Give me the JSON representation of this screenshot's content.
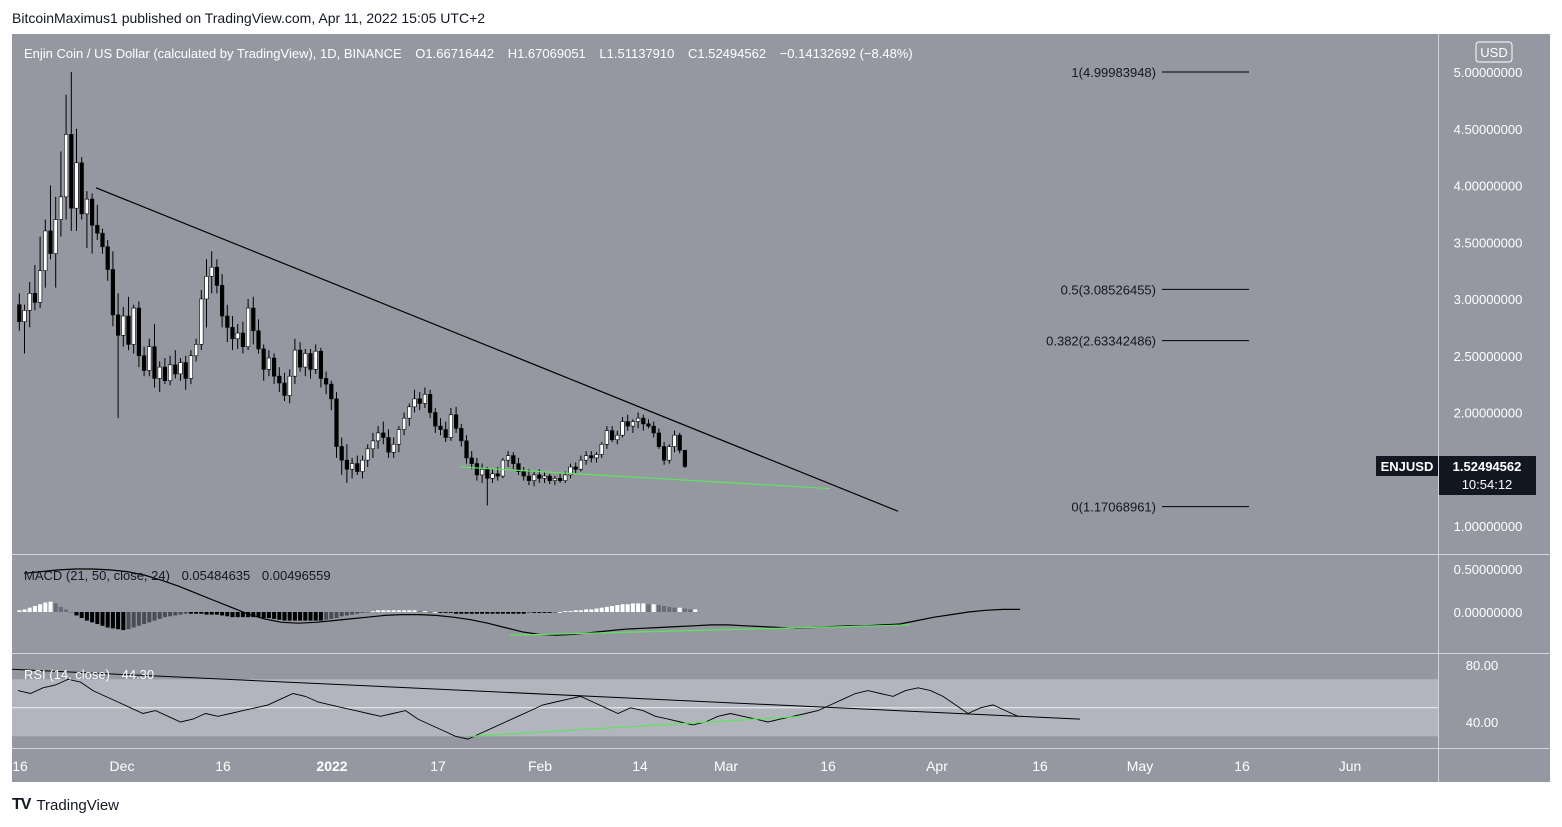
{
  "header": {
    "published_by": "BitcoinMaximus1 published on TradingView.com, Apr 11, 2022 15:05 UTC+2"
  },
  "symbol": {
    "title": "Enjin Coin / US Dollar (calculated by TradingView), 1D, BINANCE",
    "open_label": "O",
    "open": "1.66716442",
    "high_label": "H",
    "high": "1.67069051",
    "low_label": "L",
    "low": "1.51137910",
    "close_label": "C",
    "close": "1.52494562",
    "change": "−0.14132692 (−8.48%)",
    "ticker": "ENJUSD",
    "last_price": "1.52494562",
    "countdown": "10:54:12",
    "currency": "USD"
  },
  "colors": {
    "pane_bg": "#9598a1",
    "rsi_band": "#b2b5be",
    "candle_up": "#ffffff",
    "candle_down": "#000000",
    "trendline": "#000000",
    "support": "#5ce65c",
    "macd_line": "#000000",
    "tag_bg": "#131722"
  },
  "macd": {
    "label": "MACD (21, 50, close, 24)",
    "value1": "0.05484635",
    "value2": "0.00496559",
    "axis": [
      "0.50000000",
      "0.00000000"
    ]
  },
  "rsi": {
    "label": "RSI (14, close)",
    "value": "44.30",
    "axis": [
      "80.00",
      "40.00"
    ]
  },
  "x_axis": [
    "16",
    "Dec",
    "16",
    "2022",
    "17",
    "Feb",
    "14",
    "Mar",
    "16",
    "Apr",
    "16",
    "May",
    "16",
    "Jun"
  ],
  "price_axis": [
    "5.00000000",
    "4.50000000",
    "4.00000000",
    "3.50000000",
    "3.00000000",
    "2.50000000",
    "2.00000000",
    "1.00000000"
  ],
  "fib": [
    {
      "label": "1(4.99983948)",
      "level": 4.99983948
    },
    {
      "label": "0.5(3.08526455)",
      "level": 3.08526455
    },
    {
      "label": "0.382(2.63342486)",
      "level": 2.63342486
    },
    {
      "label": "0(1.17068961)",
      "level": 1.17068961
    }
  ],
  "footer": {
    "brand": "TradingView",
    "logo": "TV"
  },
  "chart_data": {
    "type": "candlestick",
    "title": "Enjin Coin / US Dollar (calculated by TradingView), 1D, BINANCE",
    "ylim": [
      0.9,
      5.2
    ],
    "candles": [
      [
        2.95,
        3.05,
        2.72,
        2.8
      ],
      [
        2.8,
        2.95,
        2.52,
        2.9
      ],
      [
        2.9,
        3.15,
        2.75,
        3.05
      ],
      [
        3.05,
        3.3,
        2.9,
        2.97
      ],
      [
        2.97,
        3.55,
        2.92,
        3.25
      ],
      [
        3.25,
        3.7,
        3.1,
        3.6
      ],
      [
        3.6,
        4.0,
        3.35,
        3.4
      ],
      [
        3.4,
        3.9,
        3.1,
        3.7
      ],
      [
        3.7,
        4.3,
        3.55,
        3.9
      ],
      [
        3.9,
        4.8,
        3.7,
        4.45
      ],
      [
        4.45,
        5.0,
        3.6,
        3.8
      ],
      [
        3.8,
        4.5,
        3.6,
        4.2
      ],
      [
        4.2,
        4.25,
        3.7,
        3.75
      ],
      [
        3.75,
        3.95,
        3.45,
        3.88
      ],
      [
        3.88,
        3.93,
        3.4,
        3.65
      ],
      [
        3.65,
        3.83,
        3.52,
        3.58
      ],
      [
        3.58,
        3.62,
        3.4,
        3.46
      ],
      [
        3.46,
        3.52,
        3.16,
        3.26
      ],
      [
        3.26,
        3.42,
        2.76,
        2.86
      ],
      [
        2.86,
        3.05,
        1.95,
        2.68
      ],
      [
        2.68,
        2.93,
        2.58,
        2.85
      ],
      [
        2.85,
        3.02,
        2.55,
        2.6
      ],
      [
        2.6,
        2.95,
        2.52,
        2.92
      ],
      [
        2.92,
        2.98,
        2.4,
        2.5
      ],
      [
        2.5,
        2.58,
        2.32,
        2.37
      ],
      [
        2.37,
        2.65,
        2.32,
        2.58
      ],
      [
        2.58,
        2.78,
        2.22,
        2.3
      ],
      [
        2.3,
        2.45,
        2.18,
        2.4
      ],
      [
        2.4,
        2.48,
        2.25,
        2.28
      ],
      [
        2.28,
        2.5,
        2.24,
        2.42
      ],
      [
        2.42,
        2.55,
        2.3,
        2.34
      ],
      [
        2.34,
        2.48,
        2.28,
        2.44
      ],
      [
        2.44,
        2.5,
        2.2,
        2.3
      ],
      [
        2.3,
        2.55,
        2.25,
        2.5
      ],
      [
        2.5,
        2.65,
        2.45,
        2.6
      ],
      [
        2.6,
        3.08,
        2.55,
        3.0
      ],
      [
        3.0,
        3.35,
        2.75,
        3.2
      ],
      [
        3.2,
        3.42,
        3.05,
        3.28
      ],
      [
        3.28,
        3.35,
        3.05,
        3.12
      ],
      [
        3.12,
        3.22,
        2.75,
        2.85
      ],
      [
        2.85,
        2.95,
        2.62,
        2.75
      ],
      [
        2.75,
        2.85,
        2.55,
        2.65
      ],
      [
        2.65,
        2.78,
        2.56,
        2.7
      ],
      [
        2.7,
        2.8,
        2.52,
        2.58
      ],
      [
        2.58,
        3.0,
        2.55,
        2.92
      ],
      [
        2.92,
        3.02,
        2.6,
        2.72
      ],
      [
        2.72,
        2.82,
        2.52,
        2.56
      ],
      [
        2.56,
        2.6,
        2.28,
        2.38
      ],
      [
        2.38,
        2.55,
        2.32,
        2.48
      ],
      [
        2.48,
        2.52,
        2.25,
        2.32
      ],
      [
        2.32,
        2.4,
        2.18,
        2.26
      ],
      [
        2.26,
        2.35,
        2.1,
        2.15
      ],
      [
        2.15,
        2.38,
        2.08,
        2.32
      ],
      [
        2.32,
        2.65,
        2.25,
        2.55
      ],
      [
        2.55,
        2.62,
        2.36,
        2.4
      ],
      [
        2.4,
        2.56,
        2.32,
        2.52
      ],
      [
        2.52,
        2.56,
        2.3,
        2.38
      ],
      [
        2.38,
        2.6,
        2.34,
        2.54
      ],
      [
        2.54,
        2.57,
        2.22,
        2.3
      ],
      [
        2.3,
        2.36,
        2.16,
        2.25
      ],
      [
        2.25,
        2.28,
        2.02,
        2.12
      ],
      [
        2.12,
        2.18,
        1.6,
        1.7
      ],
      [
        1.7,
        1.78,
        1.45,
        1.58
      ],
      [
        1.58,
        1.72,
        1.38,
        1.5
      ],
      [
        1.5,
        1.6,
        1.42,
        1.55
      ],
      [
        1.55,
        1.62,
        1.45,
        1.48
      ],
      [
        1.48,
        1.62,
        1.42,
        1.58
      ],
      [
        1.58,
        1.72,
        1.52,
        1.68
      ],
      [
        1.68,
        1.82,
        1.6,
        1.75
      ],
      [
        1.75,
        1.88,
        1.68,
        1.82
      ],
      [
        1.82,
        1.92,
        1.72,
        1.78
      ],
      [
        1.78,
        1.85,
        1.6,
        1.65
      ],
      [
        1.65,
        1.78,
        1.6,
        1.72
      ],
      [
        1.72,
        1.88,
        1.65,
        1.85
      ],
      [
        1.85,
        2.0,
        1.8,
        1.95
      ],
      [
        1.95,
        2.08,
        1.88,
        2.05
      ],
      [
        2.05,
        2.2,
        2.0,
        2.12
      ],
      [
        2.12,
        2.18,
        2.02,
        2.08
      ],
      [
        2.08,
        2.22,
        2.04,
        2.16
      ],
      [
        2.16,
        2.2,
        1.95,
        2.0
      ],
      [
        2.0,
        2.04,
        1.82,
        1.88
      ],
      [
        1.88,
        1.95,
        1.8,
        1.85
      ],
      [
        1.85,
        1.92,
        1.74,
        1.78
      ],
      [
        1.78,
        2.04,
        1.75,
        1.98
      ],
      [
        1.98,
        2.05,
        1.82,
        1.86
      ],
      [
        1.86,
        1.9,
        1.7,
        1.75
      ],
      [
        1.75,
        1.8,
        1.55,
        1.6
      ],
      [
        1.6,
        1.66,
        1.5,
        1.55
      ],
      [
        1.55,
        1.6,
        1.4,
        1.45
      ],
      [
        1.45,
        1.55,
        1.38,
        1.5
      ],
      [
        1.5,
        1.52,
        1.18,
        1.42
      ],
      [
        1.42,
        1.5,
        1.38,
        1.46
      ],
      [
        1.46,
        1.52,
        1.4,
        1.44
      ],
      [
        1.44,
        1.6,
        1.42,
        1.58
      ],
      [
        1.58,
        1.66,
        1.52,
        1.62
      ],
      [
        1.62,
        1.65,
        1.5,
        1.55
      ],
      [
        1.55,
        1.6,
        1.45,
        1.48
      ],
      [
        1.48,
        1.52,
        1.4,
        1.44
      ],
      [
        1.44,
        1.5,
        1.36,
        1.4
      ],
      [
        1.4,
        1.48,
        1.35,
        1.45
      ],
      [
        1.45,
        1.5,
        1.38,
        1.42
      ],
      [
        1.42,
        1.48,
        1.38,
        1.44
      ],
      [
        1.44,
        1.46,
        1.37,
        1.4
      ],
      [
        1.4,
        1.44,
        1.36,
        1.42
      ],
      [
        1.42,
        1.46,
        1.38,
        1.4
      ],
      [
        1.4,
        1.48,
        1.38,
        1.45
      ],
      [
        1.45,
        1.55,
        1.42,
        1.52
      ],
      [
        1.52,
        1.56,
        1.46,
        1.5
      ],
      [
        1.5,
        1.62,
        1.48,
        1.58
      ],
      [
        1.58,
        1.66,
        1.54,
        1.62
      ],
      [
        1.62,
        1.66,
        1.56,
        1.6
      ],
      [
        1.6,
        1.65,
        1.56,
        1.63
      ],
      [
        1.63,
        1.74,
        1.6,
        1.72
      ],
      [
        1.72,
        1.88,
        1.68,
        1.84
      ],
      [
        1.84,
        1.88,
        1.74,
        1.76
      ],
      [
        1.76,
        1.84,
        1.72,
        1.8
      ],
      [
        1.8,
        1.96,
        1.78,
        1.92
      ],
      [
        1.92,
        1.98,
        1.84,
        1.88
      ],
      [
        1.88,
        1.94,
        1.82,
        1.92
      ],
      [
        1.92,
        2.0,
        1.86,
        1.95
      ],
      [
        1.95,
        1.98,
        1.84,
        1.9
      ],
      [
        1.9,
        1.94,
        1.86,
        1.88
      ],
      [
        1.88,
        1.92,
        1.78,
        1.82
      ],
      [
        1.82,
        1.86,
        1.68,
        1.7
      ],
      [
        1.7,
        1.74,
        1.54,
        1.58
      ],
      [
        1.58,
        1.72,
        1.55,
        1.7
      ],
      [
        1.7,
        1.84,
        1.65,
        1.8
      ],
      [
        1.8,
        1.82,
        1.64,
        1.667
      ],
      [
        1.667,
        1.671,
        1.511,
        1.525
      ]
    ],
    "macd_hist": [
      0.02,
      0.03,
      0.05,
      0.07,
      0.09,
      0.11,
      0.12,
      0.1,
      0.06,
      0.03,
      0.0,
      -0.04,
      -0.07,
      -0.1,
      -0.12,
      -0.14,
      -0.16,
      -0.18,
      -0.19,
      -0.2,
      -0.21,
      -0.2,
      -0.18,
      -0.16,
      -0.14,
      -0.12,
      -0.1,
      -0.08,
      -0.06,
      -0.05,
      -0.04,
      -0.03,
      -0.02,
      -0.02,
      -0.02,
      -0.02,
      -0.03,
      -0.03,
      -0.03,
      -0.04,
      -0.05,
      -0.06,
      -0.06,
      -0.06,
      -0.06,
      -0.06,
      -0.06,
      -0.07,
      -0.07,
      -0.08,
      -0.09,
      -0.1,
      -0.1,
      -0.1,
      -0.1,
      -0.1,
      -0.1,
      -0.1,
      -0.1,
      -0.09,
      -0.08,
      -0.07,
      -0.05,
      -0.04,
      -0.03,
      -0.02,
      -0.01,
      0.0,
      0.01,
      0.02,
      0.02,
      0.02,
      0.02,
      0.02,
      0.02,
      0.02,
      0.02,
      0.01,
      0.01,
      0.0,
      0.0,
      -0.01,
      -0.01,
      -0.01,
      -0.02,
      -0.02,
      -0.02,
      -0.02,
      -0.02,
      -0.02,
      -0.02,
      -0.02,
      -0.02,
      -0.02,
      -0.02,
      -0.02,
      -0.02,
      -0.02,
      -0.01,
      -0.01,
      -0.01,
      -0.01,
      -0.01,
      0.0,
      0.0,
      0.01,
      0.01,
      0.02,
      0.02,
      0.03,
      0.03,
      0.04,
      0.05,
      0.06,
      0.07,
      0.08,
      0.09,
      0.09,
      0.1,
      0.1,
      0.1,
      0.09,
      0.09,
      0.08,
      0.07,
      0.06,
      0.05,
      0.05,
      0.04,
      0.03,
      0.03
    ],
    "macd_line": [
      0.45,
      0.47,
      0.49,
      0.5,
      0.5,
      0.49,
      0.47,
      0.43,
      0.37,
      0.3,
      0.22,
      0.14,
      0.06,
      -0.02,
      -0.08,
      -0.12,
      -0.13,
      -0.12,
      -0.1,
      -0.08,
      -0.06,
      -0.04,
      -0.03,
      -0.03,
      -0.04,
      -0.06,
      -0.09,
      -0.13,
      -0.18,
      -0.23,
      -0.26,
      -0.27,
      -0.26,
      -0.24,
      -0.22,
      -0.2,
      -0.19,
      -0.18,
      -0.17,
      -0.16,
      -0.15,
      -0.15,
      -0.16,
      -0.17,
      -0.18,
      -0.19,
      -0.18,
      -0.17,
      -0.16,
      -0.16,
      -0.15,
      -0.14,
      -0.1,
      -0.06,
      -0.03,
      0.0,
      0.02,
      0.03,
      0.03
    ],
    "rsi": [
      62,
      60,
      64,
      66,
      70,
      68,
      62,
      58,
      54,
      50,
      46,
      48,
      44,
      40,
      42,
      46,
      44,
      46,
      48,
      50,
      52,
      56,
      60,
      58,
      54,
      52,
      50,
      48,
      46,
      44,
      46,
      48,
      42,
      38,
      34,
      30,
      28,
      32,
      36,
      40,
      44,
      48,
      52,
      54,
      56,
      58,
      54,
      50,
      46,
      50,
      48,
      44,
      42,
      40,
      38,
      40,
      44,
      46,
      44,
      42,
      40,
      42,
      44,
      46,
      48,
      52,
      56,
      60,
      62,
      60,
      58,
      62,
      64,
      62,
      58,
      52,
      46,
      50,
      52,
      48,
      44
    ],
    "rsi_levels": [
      70,
      50,
      30
    ],
    "rsi_range": [
      20,
      90
    ]
  }
}
